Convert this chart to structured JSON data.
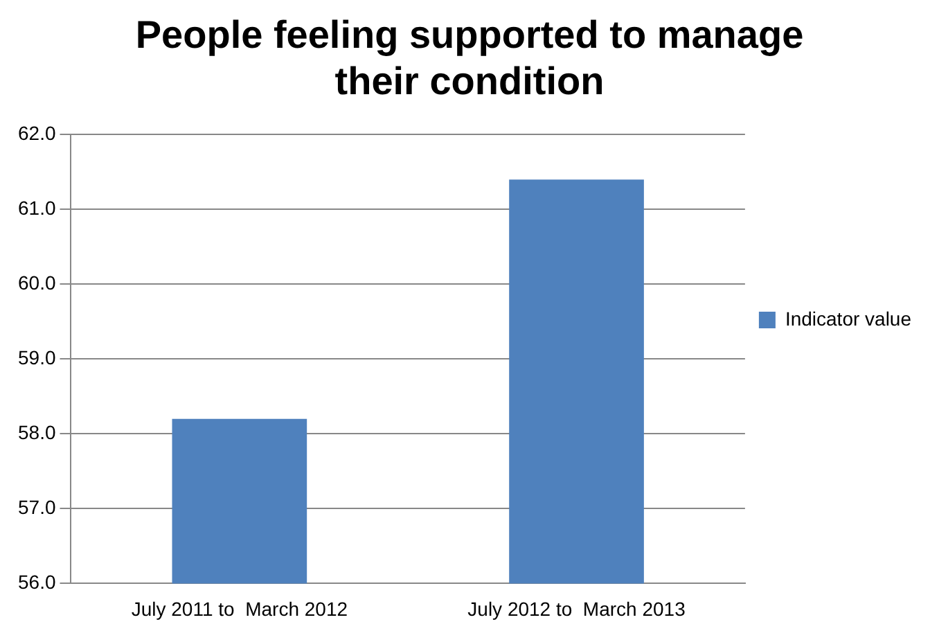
{
  "chart_data": {
    "type": "bar",
    "title": "People feeling supported to manage their condition",
    "categories": [
      "July 2011 to  March 2012",
      "July 2012 to  March 2013"
    ],
    "series": [
      {
        "name": "Indicator value",
        "color": "#4f81bd",
        "values": [
          58.2,
          61.4
        ]
      }
    ],
    "ylim": [
      56,
      62
    ],
    "yticks": [
      {
        "value": 56,
        "label": "56.0"
      },
      {
        "value": 57,
        "label": "57.0"
      },
      {
        "value": 58,
        "label": "58.0"
      },
      {
        "value": 59,
        "label": "59.0"
      },
      {
        "value": 60,
        "label": "60.0"
      },
      {
        "value": 61,
        "label": "61.0"
      },
      {
        "value": 62,
        "label": "62.0"
      }
    ],
    "grid": "y",
    "legend": "right"
  }
}
